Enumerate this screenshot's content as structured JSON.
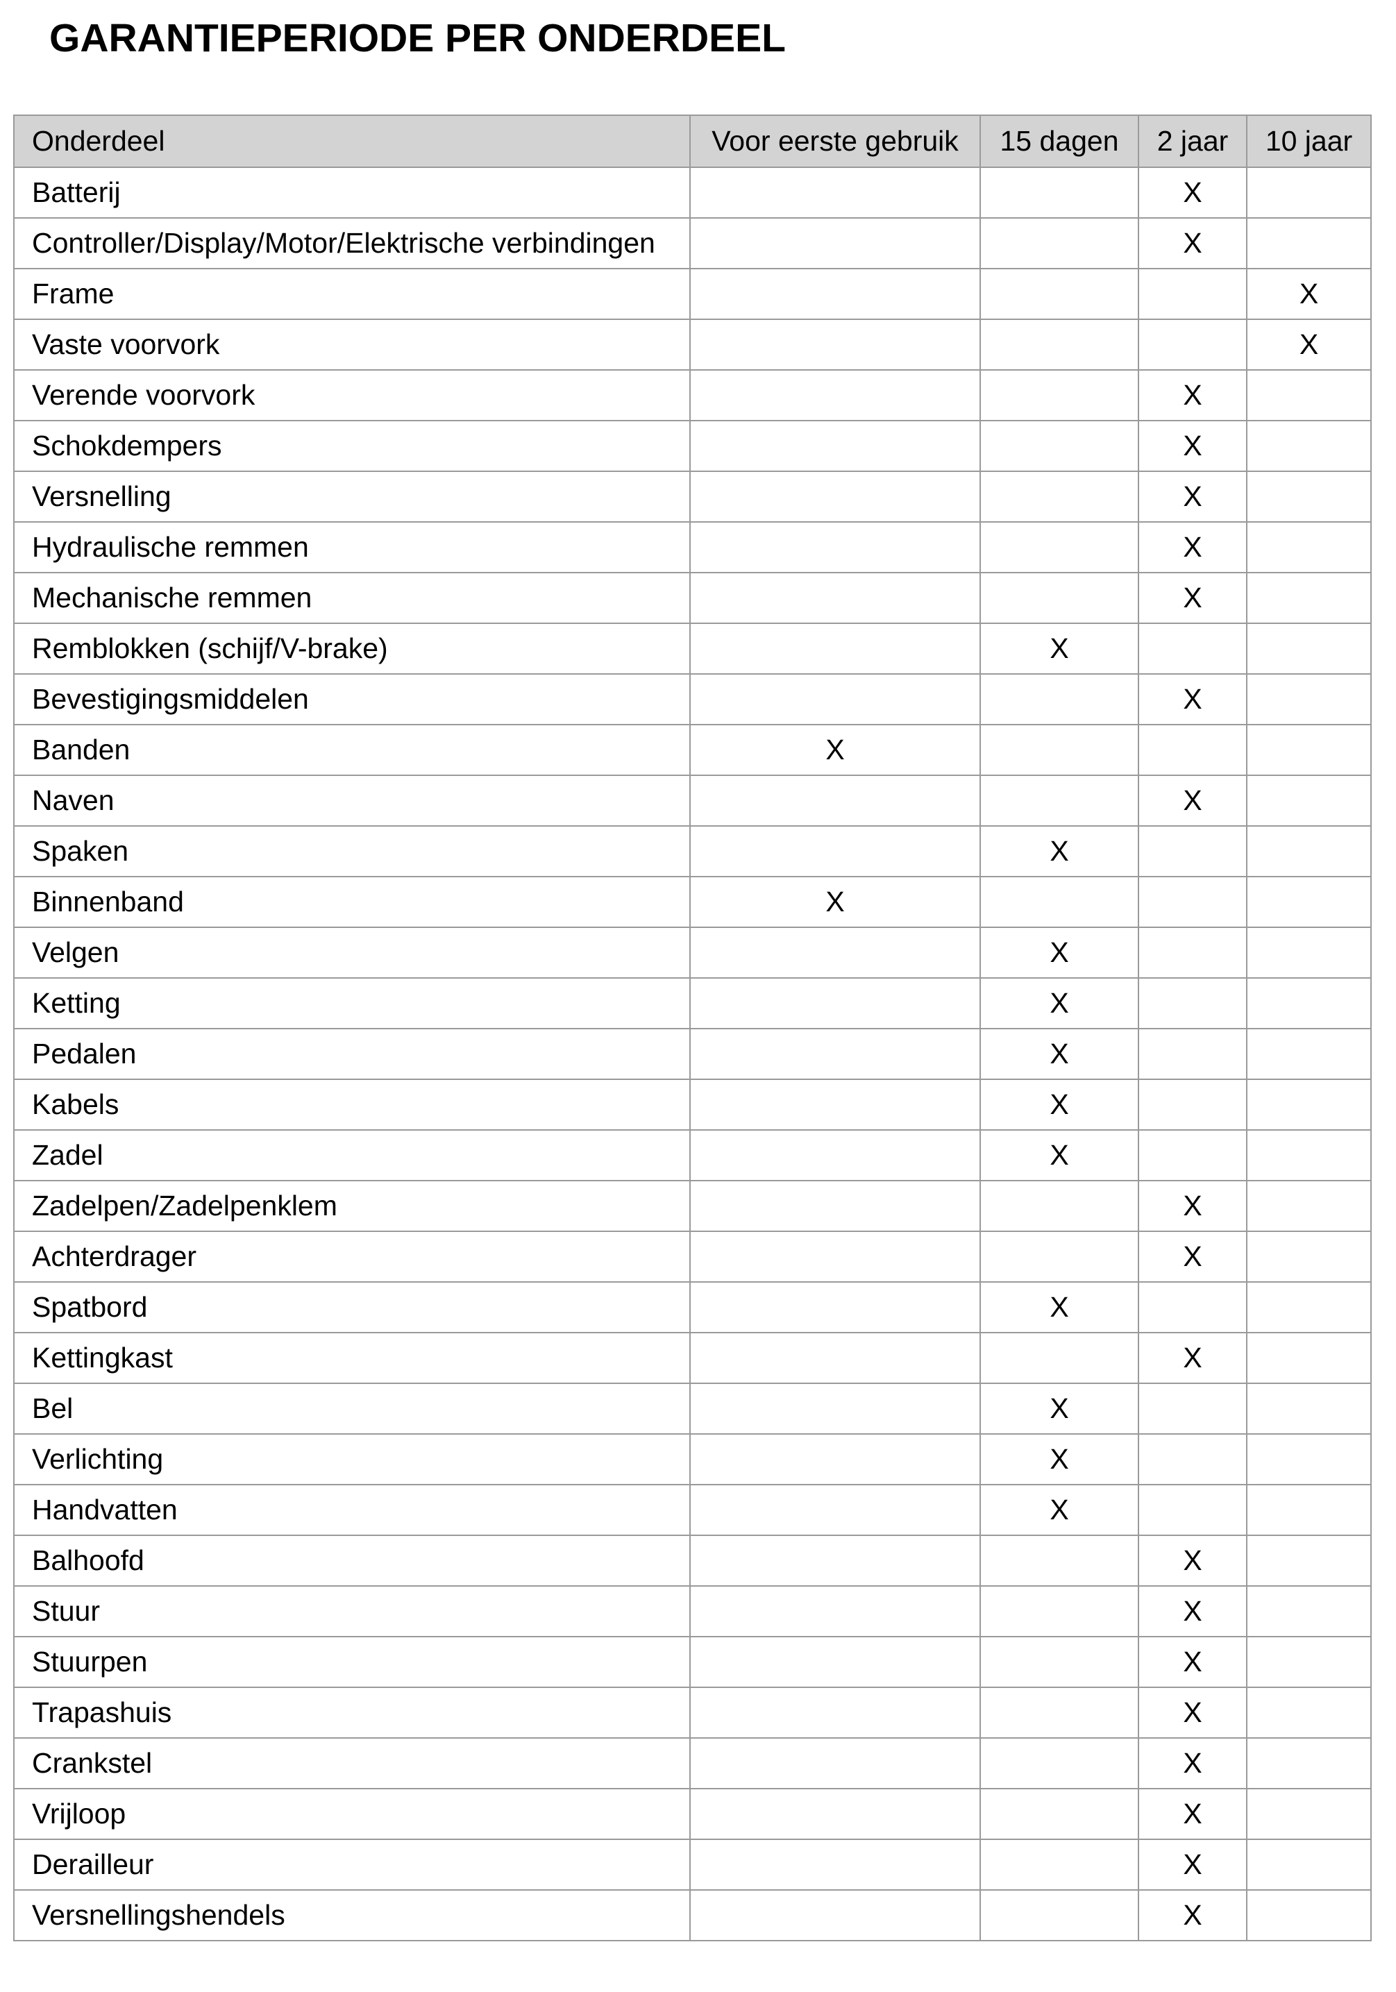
{
  "title": "GARANTIEPERIODE PER ONDERDEEL",
  "table": {
    "headers": [
      "Onderdeel",
      "Voor eerste gebruik",
      "15 dagen",
      "2 jaar",
      "10 jaar"
    ],
    "mark": "X",
    "rows": [
      {
        "part": "Batterij",
        "period": "2 jaar"
      },
      {
        "part": "Controller/Display/Motor/Elektrische verbindingen",
        "period": "2 jaar"
      },
      {
        "part": "Frame",
        "period": "10 jaar"
      },
      {
        "part": "Vaste voorvork",
        "period": "10 jaar"
      },
      {
        "part": "Verende voorvork",
        "period": "2 jaar"
      },
      {
        "part": "Schokdempers",
        "period": "2 jaar"
      },
      {
        "part": "Versnelling",
        "period": "2 jaar"
      },
      {
        "part": "Hydraulische remmen",
        "period": "2 jaar"
      },
      {
        "part": "Mechanische remmen",
        "period": "2 jaar"
      },
      {
        "part": "Remblokken (schijf/V-brake)",
        "period": "15 dagen"
      },
      {
        "part": "Bevestigingsmiddelen",
        "period": "2 jaar"
      },
      {
        "part": "Banden",
        "period": "Voor eerste gebruik"
      },
      {
        "part": "Naven",
        "period": "2 jaar"
      },
      {
        "part": "Spaken",
        "period": "15 dagen"
      },
      {
        "part": "Binnenband",
        "period": "Voor eerste gebruik"
      },
      {
        "part": "Velgen",
        "period": "15 dagen"
      },
      {
        "part": "Ketting",
        "period": "15 dagen"
      },
      {
        "part": "Pedalen",
        "period": "15 dagen"
      },
      {
        "part": "Kabels",
        "period": "15 dagen"
      },
      {
        "part": "Zadel",
        "period": "15 dagen"
      },
      {
        "part": "Zadelpen/Zadelpenklem",
        "period": "2 jaar"
      },
      {
        "part": "Achterdrager",
        "period": "2 jaar"
      },
      {
        "part": "Spatbord",
        "period": "15 dagen"
      },
      {
        "part": "Kettingkast",
        "period": "2 jaar"
      },
      {
        "part": "Bel",
        "period": "15 dagen"
      },
      {
        "part": "Verlichting",
        "period": "15 dagen"
      },
      {
        "part": "Handvatten",
        "period": "15 dagen"
      },
      {
        "part": "Balhoofd",
        "period": "2 jaar"
      },
      {
        "part": "Stuur",
        "period": "2 jaar"
      },
      {
        "part": "Stuurpen",
        "period": "2 jaar"
      },
      {
        "part": "Trapashuis",
        "period": "2 jaar"
      },
      {
        "part": "Crankstel",
        "period": "2 jaar"
      },
      {
        "part": "Vrijloop",
        "period": "2 jaar"
      },
      {
        "part": "Derailleur",
        "period": "2 jaar"
      },
      {
        "part": "Versnellingshendels",
        "period": "2 jaar"
      }
    ]
  }
}
